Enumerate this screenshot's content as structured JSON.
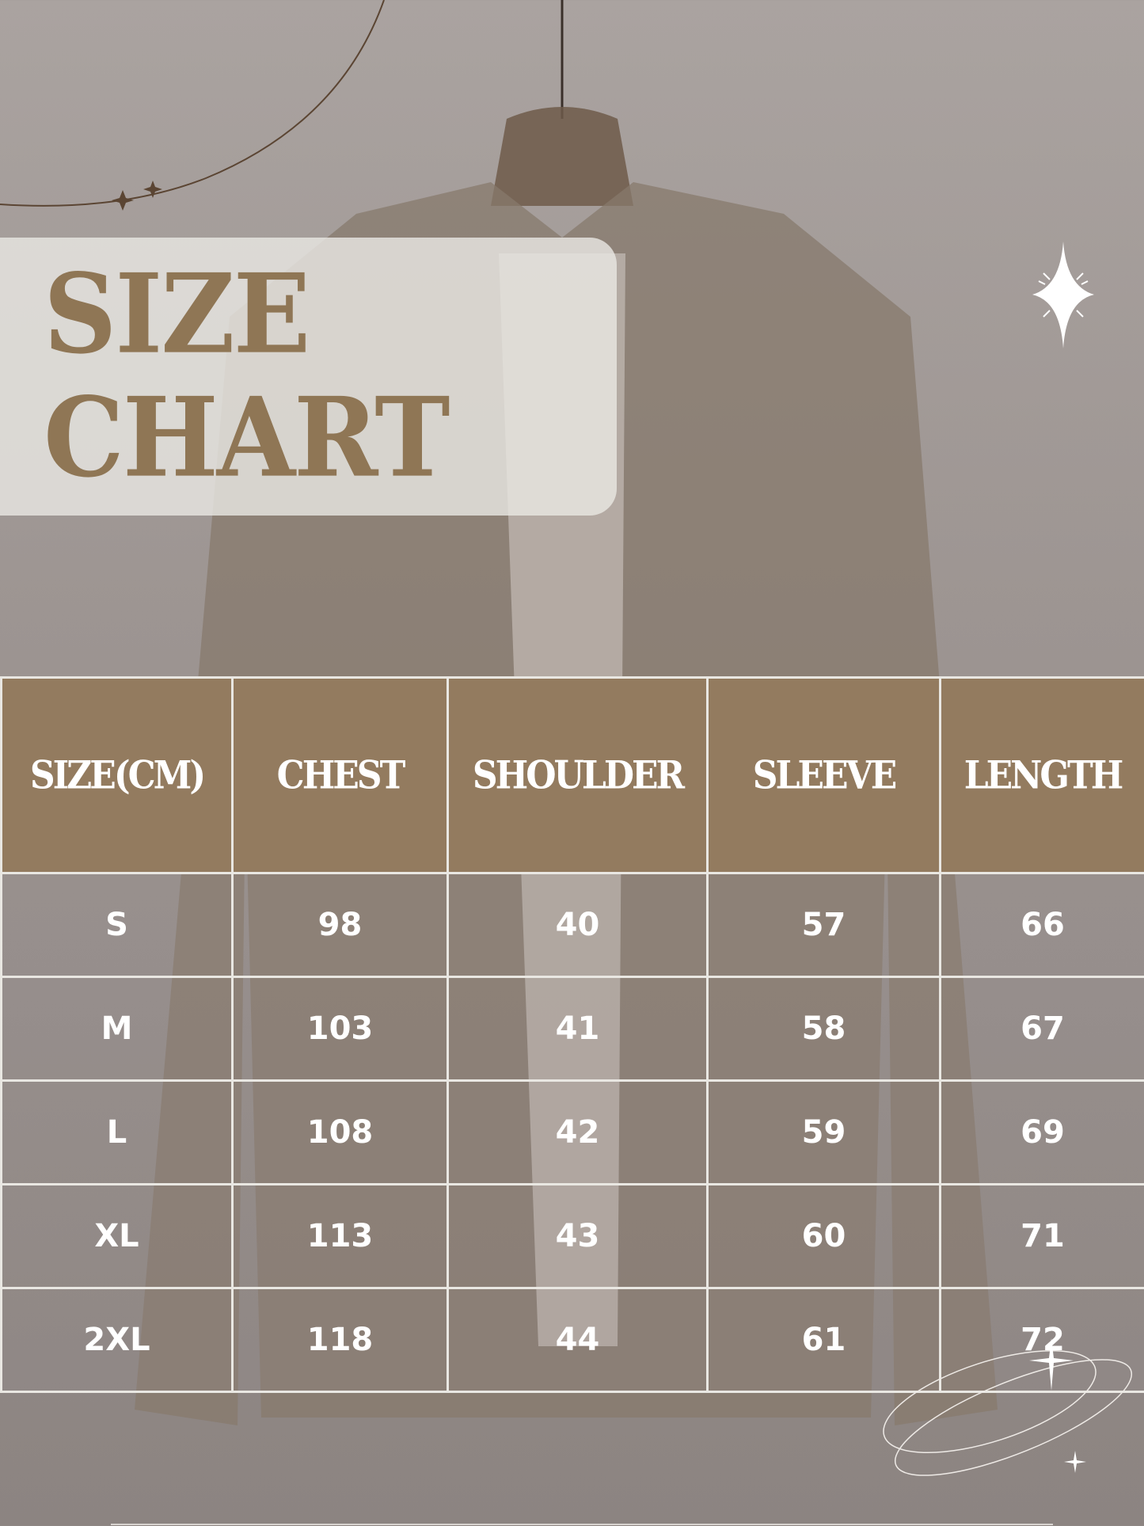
{
  "title": {
    "line1": "SIZE",
    "line2": "CHART"
  },
  "table": {
    "headers": [
      "SIZE(CM)",
      "CHEST",
      "SHOULDER",
      "SLEEVE",
      "LENGTH"
    ],
    "rows": [
      [
        "S",
        "98",
        "40",
        "57",
        "66"
      ],
      [
        "M",
        "103",
        "41",
        "58",
        "67"
      ],
      [
        "L",
        "108",
        "42",
        "59",
        "69"
      ],
      [
        "XL",
        "113",
        "43",
        "60",
        "71"
      ],
      [
        "2XL",
        "118",
        "44",
        "61",
        "72"
      ]
    ]
  },
  "colors": {
    "accent": "#937b5f",
    "title": "#8f7655",
    "grid": "#e9e7e2"
  }
}
